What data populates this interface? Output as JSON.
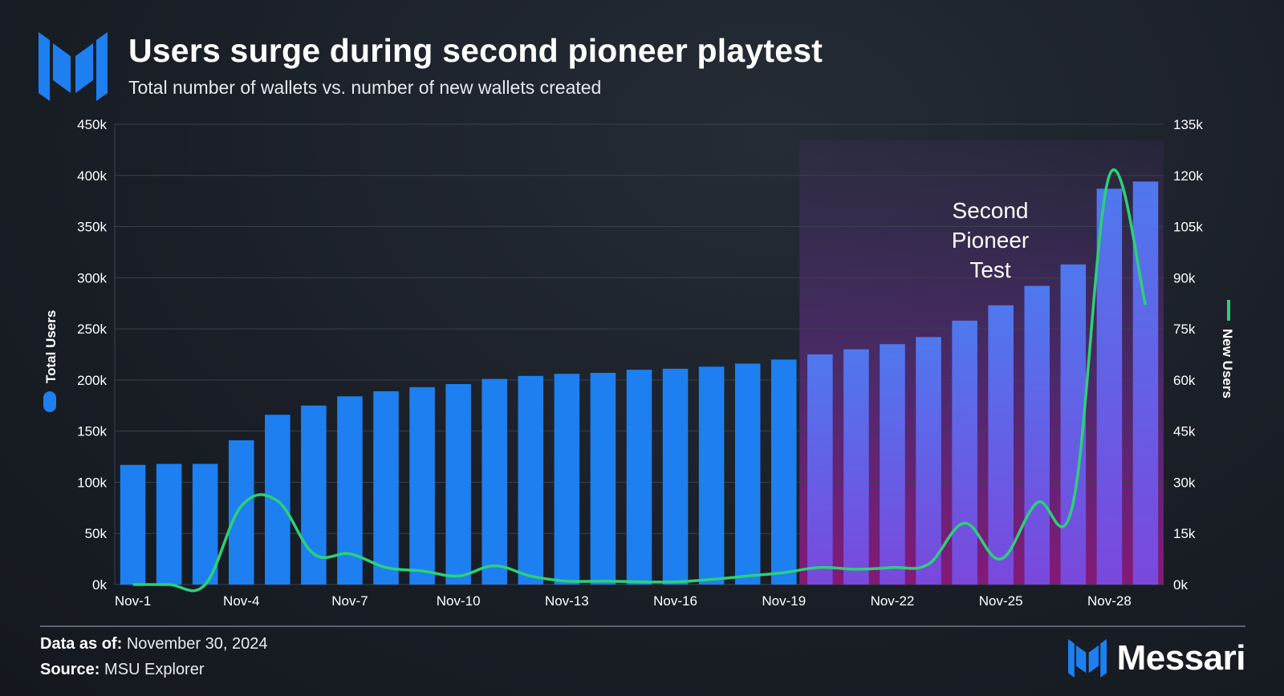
{
  "header": {
    "title": "Users surge during second pioneer playtest",
    "subtitle": "Total number of wallets vs. number of new wallets created"
  },
  "footer": {
    "data_as_of_label": "Data as of:",
    "data_as_of_value": "November 30, 2024",
    "source_label": "Source:",
    "source_value": "MSU Explorer"
  },
  "brand": {
    "name": "Messari",
    "icon": "messari-logo-icon"
  },
  "colors": {
    "bar": "#1e7ff0",
    "line": "#2bd178",
    "highlight": "#7a34b4",
    "grid": "#3a414c"
  },
  "chart_data": {
    "type": "bar+line",
    "categories": [
      "Nov-1",
      "Nov-2",
      "Nov-3",
      "Nov-4",
      "Nov-5",
      "Nov-6",
      "Nov-7",
      "Nov-8",
      "Nov-9",
      "Nov-10",
      "Nov-11",
      "Nov-12",
      "Nov-13",
      "Nov-14",
      "Nov-15",
      "Nov-16",
      "Nov-17",
      "Nov-18",
      "Nov-19",
      "Nov-20",
      "Nov-21",
      "Nov-22",
      "Nov-23",
      "Nov-24",
      "Nov-25",
      "Nov-26",
      "Nov-27",
      "Nov-28",
      "Nov-29"
    ],
    "x_tick_labels": [
      "Nov-1",
      "Nov-4",
      "Nov-7",
      "Nov-10",
      "Nov-13",
      "Nov-16",
      "Nov-19",
      "Nov-22",
      "Nov-25",
      "Nov-28"
    ],
    "series": [
      {
        "name": "Total Users",
        "type": "bar",
        "axis": "left",
        "values": [
          117000,
          118000,
          118000,
          141000,
          166000,
          175000,
          184000,
          189000,
          193000,
          196000,
          201000,
          204000,
          206000,
          207000,
          210000,
          211000,
          213000,
          216000,
          220000,
          225000,
          230000,
          235000,
          242000,
          258000,
          273000,
          292000,
          313000,
          387000,
          394000
        ]
      },
      {
        "name": "New Users",
        "type": "line",
        "axis": "right",
        "values": [
          0,
          0,
          0,
          23000,
          24500,
          9000,
          9000,
          5000,
          4000,
          2500,
          5500,
          2500,
          1000,
          1000,
          800,
          800,
          1500,
          2500,
          3500,
          5000,
          4500,
          5000,
          6000,
          18000,
          7500,
          24000,
          24000,
          120000,
          82000
        ]
      }
    ],
    "y_left": {
      "label": "Total Users",
      "ticks": [
        "0k",
        "50k",
        "100k",
        "150k",
        "200k",
        "250k",
        "300k",
        "350k",
        "400k",
        "450k"
      ],
      "range": [
        0,
        450000
      ]
    },
    "y_right": {
      "label": "New Users",
      "ticks": [
        "0k",
        "15k",
        "30k",
        "45k",
        "60k",
        "75k",
        "90k",
        "105k",
        "120k",
        "135k"
      ],
      "range": [
        0,
        135000
      ]
    },
    "highlight": {
      "start": "Nov-20",
      "end": "Nov-29",
      "label_lines": [
        "Second",
        "Pioneer",
        "Test"
      ]
    },
    "grid": true
  }
}
